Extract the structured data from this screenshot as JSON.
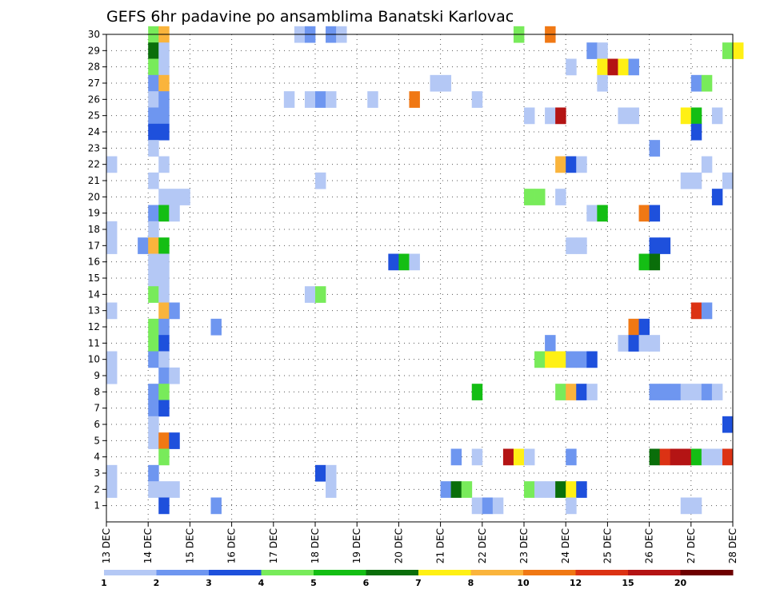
{
  "chart_data": {
    "type": "heatmap",
    "title": "GEFS 6hr padavine po ansamblima Banatski Karlovac",
    "x_ticks": [
      "13 DEC",
      "14 DEC",
      "15 DEC",
      "16 DEC",
      "17 DEC",
      "18 DEC",
      "19 DEC",
      "20 DEC",
      "21 DEC",
      "22 DEC",
      "23 DEC",
      "24 DEC",
      "25 DEC",
      "26 DEC",
      "27 DEC",
      "28 DEC"
    ],
    "y_ticks": [
      1,
      2,
      3,
      4,
      5,
      6,
      7,
      8,
      9,
      10,
      11,
      12,
      13,
      14,
      15,
      16,
      17,
      18,
      19,
      20,
      21,
      22,
      23,
      24,
      25,
      26,
      27,
      28,
      29,
      30
    ],
    "x_start_day": 13,
    "x_end_day": 28,
    "time_step_hours": 6,
    "y_range": [
      0,
      30
    ],
    "grid": true,
    "colorbar": {
      "tick_labels": [
        "1",
        "2",
        "3",
        "4",
        "5",
        "6",
        "7",
        "8",
        "10",
        "12",
        "15",
        "20"
      ],
      "colors": [
        "#b4c8f5",
        "#6e96f0",
        "#1e50dc",
        "#78eb5a",
        "#14be14",
        "#0a6e0a",
        "#fff014",
        "#fab43c",
        "#f07814",
        "#dc3214",
        "#b41414",
        "#6e0000"
      ]
    },
    "values": [
      {
        "member": 30,
        "step": 4,
        "precip": 4.5
      },
      {
        "member": 30,
        "step": 5,
        "precip": 8.5
      },
      {
        "member": 30,
        "step": 18,
        "precip": 1.5
      },
      {
        "member": 30,
        "step": 19,
        "precip": 2.5
      },
      {
        "member": 30,
        "step": 21,
        "precip": 2.5
      },
      {
        "member": 30,
        "step": 22,
        "precip": 1.5
      },
      {
        "member": 30,
        "step": 39,
        "precip": 4.5
      },
      {
        "member": 30,
        "step": 42,
        "precip": 11
      },
      {
        "member": 29,
        "step": 4,
        "precip": 6.5
      },
      {
        "member": 29,
        "step": 5,
        "precip": 1.5
      },
      {
        "member": 29,
        "step": 46,
        "precip": 2.5
      },
      {
        "member": 29,
        "step": 47,
        "precip": 1.5
      },
      {
        "member": 29,
        "step": 59,
        "precip": 4.5
      },
      {
        "member": 29,
        "step": 60,
        "precip": 7.5
      },
      {
        "member": 28,
        "step": 4,
        "precip": 4.5
      },
      {
        "member": 28,
        "step": 5,
        "precip": 1.5
      },
      {
        "member": 28,
        "step": 44,
        "precip": 1.5
      },
      {
        "member": 28,
        "step": 47,
        "precip": 7.5
      },
      {
        "member": 28,
        "step": 48,
        "precip": 17
      },
      {
        "member": 28,
        "step": 49,
        "precip": 7.5
      },
      {
        "member": 28,
        "step": 50,
        "precip": 2.5
      },
      {
        "member": 27,
        "step": 4,
        "precip": 2.5
      },
      {
        "member": 27,
        "step": 5,
        "precip": 9
      },
      {
        "member": 27,
        "step": 31,
        "precip": 1.5
      },
      {
        "member": 27,
        "step": 32,
        "precip": 1.5
      },
      {
        "member": 27,
        "step": 47,
        "precip": 1.5
      },
      {
        "member": 27,
        "step": 56,
        "precip": 2.5
      },
      {
        "member": 27,
        "step": 57,
        "precip": 4.5
      },
      {
        "member": 26,
        "step": 4,
        "precip": 1.5
      },
      {
        "member": 26,
        "step": 5,
        "precip": 2.5
      },
      {
        "member": 26,
        "step": 17,
        "precip": 1.5
      },
      {
        "member": 26,
        "step": 19,
        "precip": 1.5
      },
      {
        "member": 26,
        "step": 20,
        "precip": 2.5
      },
      {
        "member": 26,
        "step": 21,
        "precip": 1.5
      },
      {
        "member": 26,
        "step": 25,
        "precip": 1.5
      },
      {
        "member": 26,
        "step": 29,
        "precip": 11
      },
      {
        "member": 26,
        "step": 35,
        "precip": 1.5
      },
      {
        "member": 25,
        "step": 4,
        "precip": 2.5
      },
      {
        "member": 25,
        "step": 5,
        "precip": 2.5
      },
      {
        "member": 25,
        "step": 40,
        "precip": 1.5
      },
      {
        "member": 25,
        "step": 42,
        "precip": 1.5
      },
      {
        "member": 25,
        "step": 43,
        "precip": 15
      },
      {
        "member": 25,
        "step": 49,
        "precip": 1.5
      },
      {
        "member": 25,
        "step": 50,
        "precip": 1.5
      },
      {
        "member": 25,
        "step": 55,
        "precip": 7.5
      },
      {
        "member": 25,
        "step": 56,
        "precip": 5.5
      },
      {
        "member": 25,
        "step": 58,
        "precip": 1.5
      },
      {
        "member": 24,
        "step": 4,
        "precip": 3.5
      },
      {
        "member": 24,
        "step": 5,
        "precip": 3.5
      },
      {
        "member": 24,
        "step": 56,
        "precip": 3.5
      },
      {
        "member": 23,
        "step": 4,
        "precip": 1.5
      },
      {
        "member": 23,
        "step": 52,
        "precip": 2.5
      },
      {
        "member": 22,
        "step": 0,
        "precip": 1.5
      },
      {
        "member": 22,
        "step": 5,
        "precip": 1.5
      },
      {
        "member": 22,
        "step": 43,
        "precip": 9
      },
      {
        "member": 22,
        "step": 44,
        "precip": 3.5
      },
      {
        "member": 22,
        "step": 45,
        "precip": 1.5
      },
      {
        "member": 22,
        "step": 57,
        "precip": 1.5
      },
      {
        "member": 21,
        "step": 4,
        "precip": 1.5
      },
      {
        "member": 21,
        "step": 20,
        "precip": 1.5
      },
      {
        "member": 21,
        "step": 55,
        "precip": 1.5
      },
      {
        "member": 21,
        "step": 56,
        "precip": 1.5
      },
      {
        "member": 21,
        "step": 59,
        "precip": 1.5
      },
      {
        "member": 20,
        "step": 5,
        "precip": 1.5
      },
      {
        "member": 20,
        "step": 6,
        "precip": 1.5
      },
      {
        "member": 20,
        "step": 7,
        "precip": 1.5
      },
      {
        "member": 20,
        "step": 40,
        "precip": 4.5
      },
      {
        "member": 20,
        "step": 41,
        "precip": 4.5
      },
      {
        "member": 20,
        "step": 43,
        "precip": 1.5
      },
      {
        "member": 20,
        "step": 58,
        "precip": 3.5
      },
      {
        "member": 19,
        "step": 4,
        "precip": 2.5
      },
      {
        "member": 19,
        "step": 5,
        "precip": 5.5
      },
      {
        "member": 19,
        "step": 6,
        "precip": 1.5
      },
      {
        "member": 19,
        "step": 46,
        "precip": 1.5
      },
      {
        "member": 19,
        "step": 47,
        "precip": 5.5
      },
      {
        "member": 19,
        "step": 51,
        "precip": 11
      },
      {
        "member": 19,
        "step": 52,
        "precip": 3.5
      },
      {
        "member": 18,
        "step": 0,
        "precip": 1.5
      },
      {
        "member": 18,
        "step": 4,
        "precip": 1.5
      },
      {
        "member": 17,
        "step": 0,
        "precip": 1.5
      },
      {
        "member": 17,
        "step": 3,
        "precip": 2.5
      },
      {
        "member": 17,
        "step": 4,
        "precip": 9
      },
      {
        "member": 17,
        "step": 5,
        "precip": 5.5
      },
      {
        "member": 17,
        "step": 44,
        "precip": 1.5
      },
      {
        "member": 17,
        "step": 45,
        "precip": 1.5
      },
      {
        "member": 17,
        "step": 52,
        "precip": 3.5
      },
      {
        "member": 17,
        "step": 53,
        "precip": 3.5
      },
      {
        "member": 16,
        "step": 4,
        "precip": 1.5
      },
      {
        "member": 16,
        "step": 5,
        "precip": 1.5
      },
      {
        "member": 16,
        "step": 27,
        "precip": 3.5
      },
      {
        "member": 16,
        "step": 28,
        "precip": 5.5
      },
      {
        "member": 16,
        "step": 29,
        "precip": 1.5
      },
      {
        "member": 16,
        "step": 51,
        "precip": 5.5
      },
      {
        "member": 16,
        "step": 52,
        "precip": 6.5
      },
      {
        "member": 15,
        "step": 4,
        "precip": 1.5
      },
      {
        "member": 15,
        "step": 5,
        "precip": 1.5
      },
      {
        "member": 14,
        "step": 4,
        "precip": 4.5
      },
      {
        "member": 14,
        "step": 5,
        "precip": 1.5
      },
      {
        "member": 14,
        "step": 19,
        "precip": 1.5
      },
      {
        "member": 14,
        "step": 20,
        "precip": 4.5
      },
      {
        "member": 13,
        "step": 0,
        "precip": 1.5
      },
      {
        "member": 13,
        "step": 5,
        "precip": 9
      },
      {
        "member": 13,
        "step": 6,
        "precip": 2.5
      },
      {
        "member": 13,
        "step": 56,
        "precip": 13
      },
      {
        "member": 13,
        "step": 57,
        "precip": 2.5
      },
      {
        "member": 12,
        "step": 4,
        "precip": 4.5
      },
      {
        "member": 12,
        "step": 5,
        "precip": 2.5
      },
      {
        "member": 12,
        "step": 10,
        "precip": 2.5
      },
      {
        "member": 12,
        "step": 50,
        "precip": 11
      },
      {
        "member": 12,
        "step": 51,
        "precip": 3.5
      },
      {
        "member": 11,
        "step": 4,
        "precip": 4.5
      },
      {
        "member": 11,
        "step": 5,
        "precip": 3.5
      },
      {
        "member": 11,
        "step": 42,
        "precip": 2.5
      },
      {
        "member": 11,
        "step": 49,
        "precip": 1.5
      },
      {
        "member": 11,
        "step": 50,
        "precip": 3.5
      },
      {
        "member": 11,
        "step": 51,
        "precip": 1.5
      },
      {
        "member": 11,
        "step": 52,
        "precip": 1.5
      },
      {
        "member": 10,
        "step": 0,
        "precip": 1.5
      },
      {
        "member": 10,
        "step": 4,
        "precip": 2.5
      },
      {
        "member": 10,
        "step": 5,
        "precip": 1.5
      },
      {
        "member": 10,
        "step": 41,
        "precip": 4.5
      },
      {
        "member": 10,
        "step": 42,
        "precip": 7.5
      },
      {
        "member": 10,
        "step": 43,
        "precip": 7.5
      },
      {
        "member": 10,
        "step": 44,
        "precip": 2.5
      },
      {
        "member": 10,
        "step": 45,
        "precip": 2.5
      },
      {
        "member": 10,
        "step": 46,
        "precip": 3.5
      },
      {
        "member": 9,
        "step": 0,
        "precip": 1.5
      },
      {
        "member": 9,
        "step": 5,
        "precip": 2.5
      },
      {
        "member": 9,
        "step": 6,
        "precip": 1.5
      },
      {
        "member": 8,
        "step": 4,
        "precip": 2.5
      },
      {
        "member": 8,
        "step": 5,
        "precip": 4.5
      },
      {
        "member": 8,
        "step": 35,
        "precip": 5.5
      },
      {
        "member": 8,
        "step": 43,
        "precip": 4.5
      },
      {
        "member": 8,
        "step": 44,
        "precip": 9
      },
      {
        "member": 8,
        "step": 45,
        "precip": 3.5
      },
      {
        "member": 8,
        "step": 46,
        "precip": 1.5
      },
      {
        "member": 8,
        "step": 52,
        "precip": 2.5
      },
      {
        "member": 8,
        "step": 53,
        "precip": 2.5
      },
      {
        "member": 8,
        "step": 54,
        "precip": 2.5
      },
      {
        "member": 8,
        "step": 55,
        "precip": 1.5
      },
      {
        "member": 8,
        "step": 56,
        "precip": 1.5
      },
      {
        "member": 8,
        "step": 57,
        "precip": 2.5
      },
      {
        "member": 8,
        "step": 58,
        "precip": 1.5
      },
      {
        "member": 7,
        "step": 4,
        "precip": 2.5
      },
      {
        "member": 7,
        "step": 5,
        "precip": 3.5
      },
      {
        "member": 6,
        "step": 4,
        "precip": 1.5
      },
      {
        "member": 6,
        "step": 59,
        "precip": 3.5
      },
      {
        "member": 5,
        "step": 4,
        "precip": 1.5
      },
      {
        "member": 5,
        "step": 5,
        "precip": 11
      },
      {
        "member": 5,
        "step": 6,
        "precip": 3.5
      },
      {
        "member": 4,
        "step": 5,
        "precip": 4.5
      },
      {
        "member": 4,
        "step": 33,
        "precip": 2.5
      },
      {
        "member": 4,
        "step": 35,
        "precip": 1.5
      },
      {
        "member": 4,
        "step": 38,
        "precip": 17
      },
      {
        "member": 4,
        "step": 39,
        "precip": 7.5
      },
      {
        "member": 4,
        "step": 40,
        "precip": 1.5
      },
      {
        "member": 4,
        "step": 44,
        "precip": 2.5
      },
      {
        "member": 4,
        "step": 52,
        "precip": 6.5
      },
      {
        "member": 4,
        "step": 53,
        "precip": 13
      },
      {
        "member": 4,
        "step": 54,
        "precip": 15
      },
      {
        "member": 4,
        "step": 55,
        "precip": 15
      },
      {
        "member": 4,
        "step": 56,
        "precip": 5.5
      },
      {
        "member": 4,
        "step": 57,
        "precip": 1.5
      },
      {
        "member": 4,
        "step": 58,
        "precip": 1.5
      },
      {
        "member": 4,
        "step": 59,
        "precip": 13
      },
      {
        "member": 3,
        "step": 0,
        "precip": 1.5
      },
      {
        "member": 3,
        "step": 4,
        "precip": 2.5
      },
      {
        "member": 3,
        "step": 20,
        "precip": 3.5
      },
      {
        "member": 3,
        "step": 21,
        "precip": 1.5
      },
      {
        "member": 2,
        "step": 0,
        "precip": 1.5
      },
      {
        "member": 2,
        "step": 4,
        "precip": 1.5
      },
      {
        "member": 2,
        "step": 5,
        "precip": 1.5
      },
      {
        "member": 2,
        "step": 6,
        "precip": 1.5
      },
      {
        "member": 2,
        "step": 21,
        "precip": 1.5
      },
      {
        "member": 2,
        "step": 32,
        "precip": 2.5
      },
      {
        "member": 2,
        "step": 33,
        "precip": 6.5
      },
      {
        "member": 2,
        "step": 34,
        "precip": 4.5
      },
      {
        "member": 2,
        "step": 40,
        "precip": 4.5
      },
      {
        "member": 2,
        "step": 41,
        "precip": 1.5
      },
      {
        "member": 2,
        "step": 42,
        "precip": 1.5
      },
      {
        "member": 2,
        "step": 43,
        "precip": 6.5
      },
      {
        "member": 2,
        "step": 44,
        "precip": 7.5
      },
      {
        "member": 2,
        "step": 45,
        "precip": 3.5
      },
      {
        "member": 1,
        "step": 5,
        "precip": 3.5
      },
      {
        "member": 1,
        "step": 10,
        "precip": 2.5
      },
      {
        "member": 1,
        "step": 35,
        "precip": 1.5
      },
      {
        "member": 1,
        "step": 36,
        "precip": 2.5
      },
      {
        "member": 1,
        "step": 37,
        "precip": 1.5
      },
      {
        "member": 1,
        "step": 44,
        "precip": 1.5
      },
      {
        "member": 1,
        "step": 55,
        "precip": 1.5
      },
      {
        "member": 1,
        "step": 56,
        "precip": 1.5
      }
    ]
  }
}
